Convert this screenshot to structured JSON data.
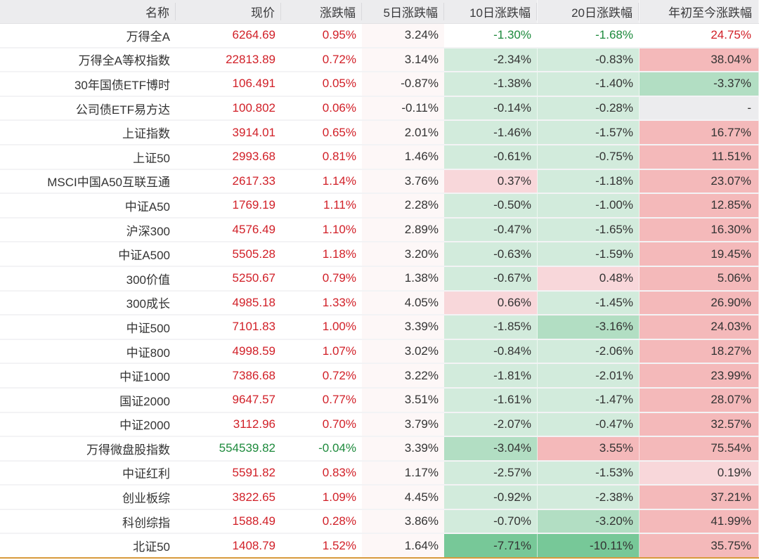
{
  "header": {
    "name": "名称",
    "price": "现价",
    "chg": "涨跌幅",
    "d5": "5日涨跌幅",
    "d10": "10日涨跌幅",
    "d20": "20日涨跌幅",
    "ytd": "年初至今涨跌幅"
  },
  "colors": {
    "up": "#d11f27",
    "down": "#1d8a3c",
    "light_green": "#d2ebdc",
    "mid_green": "#b2dec3",
    "dark_green": "#77c898",
    "light_red": "#f8d7da",
    "mid_red": "#f4b9ba",
    "neutral_gray": "#ececee"
  },
  "rows": [
    {
      "name": "万得全A",
      "price": "6264.69",
      "chg": "0.95%",
      "d5": "3.24%",
      "d10": "-1.30%",
      "d20": "-1.68%",
      "ytd": "24.75%"
    },
    {
      "name": "万得全A等权指数",
      "price": "22813.89",
      "chg": "0.72%",
      "d5": "3.14%",
      "d10": "-2.34%",
      "d20": "-0.83%",
      "ytd": "38.04%"
    },
    {
      "name": "30年国债ETF博时",
      "price": "106.491",
      "chg": "0.05%",
      "d5": "-0.87%",
      "d10": "-1.38%",
      "d20": "-1.40%",
      "ytd": "-3.37%"
    },
    {
      "name": "公司债ETF易方达",
      "price": "100.802",
      "chg": "0.06%",
      "d5": "-0.11%",
      "d10": "-0.14%",
      "d20": "-0.28%",
      "ytd": "-"
    },
    {
      "name": "上证指数",
      "price": "3914.01",
      "chg": "0.65%",
      "d5": "2.01%",
      "d10": "-1.46%",
      "d20": "-1.57%",
      "ytd": "16.77%"
    },
    {
      "name": "上证50",
      "price": "2993.68",
      "chg": "0.81%",
      "d5": "1.46%",
      "d10": "-0.61%",
      "d20": "-0.75%",
      "ytd": "11.51%"
    },
    {
      "name": "MSCI中国A50互联互通",
      "price": "2617.33",
      "chg": "1.14%",
      "d5": "3.76%",
      "d10": "0.37%",
      "d20": "-1.18%",
      "ytd": "23.07%"
    },
    {
      "name": "中证A50",
      "price": "1769.19",
      "chg": "1.11%",
      "d5": "2.28%",
      "d10": "-0.50%",
      "d20": "-1.00%",
      "ytd": "12.85%"
    },
    {
      "name": "沪深300",
      "price": "4576.49",
      "chg": "1.10%",
      "d5": "2.89%",
      "d10": "-0.47%",
      "d20": "-1.65%",
      "ytd": "16.30%"
    },
    {
      "name": "中证A500",
      "price": "5505.28",
      "chg": "1.18%",
      "d5": "3.20%",
      "d10": "-0.63%",
      "d20": "-1.59%",
      "ytd": "19.45%"
    },
    {
      "name": "300价值",
      "price": "5250.67",
      "chg": "0.79%",
      "d5": "1.38%",
      "d10": "-0.67%",
      "d20": "0.48%",
      "ytd": "5.06%"
    },
    {
      "name": "300成长",
      "price": "4985.18",
      "chg": "1.33%",
      "d5": "4.05%",
      "d10": "0.66%",
      "d20": "-1.45%",
      "ytd": "26.90%"
    },
    {
      "name": "中证500",
      "price": "7101.83",
      "chg": "1.00%",
      "d5": "3.39%",
      "d10": "-1.85%",
      "d20": "-3.16%",
      "ytd": "24.03%"
    },
    {
      "name": "中证800",
      "price": "4998.59",
      "chg": "1.07%",
      "d5": "3.02%",
      "d10": "-0.84%",
      "d20": "-2.06%",
      "ytd": "18.27%"
    },
    {
      "name": "中证1000",
      "price": "7386.68",
      "chg": "0.72%",
      "d5": "3.22%",
      "d10": "-1.81%",
      "d20": "-2.01%",
      "ytd": "23.99%"
    },
    {
      "name": "国证2000",
      "price": "9647.57",
      "chg": "0.77%",
      "d5": "3.51%",
      "d10": "-1.61%",
      "d20": "-1.47%",
      "ytd": "28.07%"
    },
    {
      "name": "中证2000",
      "price": "3112.96",
      "chg": "0.70%",
      "d5": "3.79%",
      "d10": "-2.07%",
      "d20": "-0.47%",
      "ytd": "32.57%"
    },
    {
      "name": "万得微盘股指数",
      "price": "554539.82",
      "chg": "-0.04%",
      "d5": "3.39%",
      "d10": "-3.04%",
      "d20": "3.55%",
      "ytd": "75.54%"
    },
    {
      "name": "中证红利",
      "price": "5591.82",
      "chg": "0.83%",
      "d5": "1.17%",
      "d10": "-2.57%",
      "d20": "-1.53%",
      "ytd": "0.19%"
    },
    {
      "name": "创业板综",
      "price": "3822.65",
      "chg": "1.09%",
      "d5": "4.45%",
      "d10": "-0.92%",
      "d20": "-2.38%",
      "ytd": "37.21%"
    },
    {
      "name": "科创综指",
      "price": "1588.49",
      "chg": "0.28%",
      "d5": "3.86%",
      "d10": "-0.70%",
      "d20": "-3.20%",
      "ytd": "41.99%"
    },
    {
      "name": "北证50",
      "price": "1408.79",
      "chg": "1.52%",
      "d5": "1.64%",
      "d10": "-7.71%",
      "d20": "-10.11%",
      "ytd": "35.75%"
    }
  ]
}
